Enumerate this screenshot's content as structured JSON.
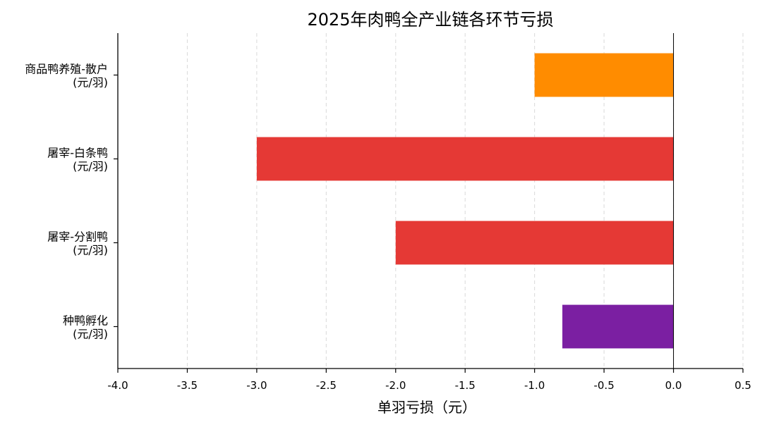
{
  "chart_data": {
    "type": "bar",
    "orientation": "horizontal",
    "title": "2025年肉鸭全产业链各环节亏损",
    "xlabel": "单羽亏损（元）",
    "ylabel": "",
    "xlim": [
      -4.0,
      0.5
    ],
    "x_ticks": [
      "-4.0",
      "-3.5",
      "-3.0",
      "-2.5",
      "-2.0",
      "-1.5",
      "-1.0",
      "-0.5",
      "0.0",
      "0.5"
    ],
    "categories": [
      {
        "line1": "商品鸭养殖-散户",
        "line2": "(元/羽)"
      },
      {
        "line1": "屠宰-白条鸭",
        "line2": "(元/羽)"
      },
      {
        "line1": "屠宰-分割鸭",
        "line2": "(元/羽)"
      },
      {
        "line1": "种鸭孵化",
        "line2": "(元/羽)"
      }
    ],
    "values": [
      -1.0,
      -3.0,
      -2.0,
      -0.8
    ],
    "colors": [
      "#FF8C00",
      "#E53935",
      "#E53935",
      "#7B1FA2"
    ],
    "grid": "x-dashed"
  }
}
